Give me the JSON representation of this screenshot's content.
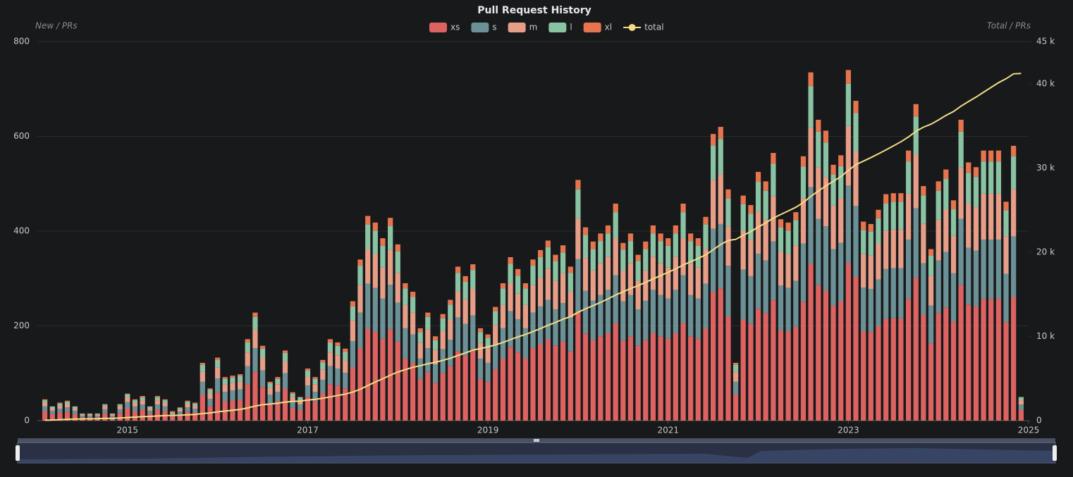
{
  "chart_data": {
    "type": "bar",
    "stacked": true,
    "title": "Pull Request History",
    "ylabel": "New / PRs",
    "y2label": "Total / PRs",
    "xlim": [
      2014.0,
      2025.0
    ],
    "xticks": [
      2015,
      2017,
      2019,
      2021,
      2023,
      2025
    ],
    "ylim": [
      0,
      800
    ],
    "yticks": [
      0,
      200,
      400,
      600,
      800
    ],
    "y2lim": [
      0,
      45000
    ],
    "y2ticks": [
      0,
      {
        "value": 10000,
        "label": "10 k"
      },
      {
        "value": 20000,
        "label": "20 k"
      },
      {
        "value": 30000,
        "label": "30 k"
      },
      {
        "value": 40000,
        "label": "40 k"
      },
      {
        "value": 45000,
        "label": "45 k"
      }
    ],
    "grid": true,
    "legend": "top",
    "x": [
      2014.083,
      2014.167,
      2014.25,
      2014.333,
      2014.417,
      2014.5,
      2014.583,
      2014.667,
      2014.75,
      2014.833,
      2014.917,
      2015.0,
      2015.083,
      2015.167,
      2015.25,
      2015.333,
      2015.417,
      2015.5,
      2015.583,
      2015.667,
      2015.75,
      2015.833,
      2015.917,
      2016.0,
      2016.083,
      2016.167,
      2016.25,
      2016.333,
      2016.417,
      2016.5,
      2016.583,
      2016.667,
      2016.75,
      2016.833,
      2016.917,
      2017.0,
      2017.083,
      2017.167,
      2017.25,
      2017.333,
      2017.417,
      2017.5,
      2017.583,
      2017.667,
      2017.75,
      2017.833,
      2017.917,
      2018.0,
      2018.083,
      2018.167,
      2018.25,
      2018.333,
      2018.417,
      2018.5,
      2018.583,
      2018.667,
      2018.75,
      2018.833,
      2018.917,
      2019.0,
      2019.083,
      2019.167,
      2019.25,
      2019.333,
      2019.417,
      2019.5,
      2019.583,
      2019.667,
      2019.75,
      2019.833,
      2019.917,
      2020.0,
      2020.083,
      2020.167,
      2020.25,
      2020.333,
      2020.417,
      2020.5,
      2020.583,
      2020.667,
      2020.75,
      2020.833,
      2020.917,
      2021.0,
      2021.083,
      2021.167,
      2021.25,
      2021.333,
      2021.417,
      2021.5,
      2021.583,
      2021.667,
      2021.75,
      2021.833,
      2021.917,
      2022.0,
      2022.083,
      2022.167,
      2022.25,
      2022.333,
      2022.417,
      2022.5,
      2022.583,
      2022.667,
      2022.75,
      2022.833,
      2022.917,
      2023.0,
      2023.083,
      2023.167,
      2023.25,
      2023.333,
      2023.417,
      2023.5,
      2023.583,
      2023.667,
      2023.75,
      2023.833,
      2023.917,
      2024.0,
      2024.083,
      2024.167,
      2024.25,
      2024.333,
      2024.417,
      2024.5,
      2024.583,
      2024.667,
      2024.75,
      2024.833,
      2024.917
    ],
    "series": [
      {
        "name": "xs",
        "color": "#dc6361",
        "values": [
          20,
          14,
          17,
          19,
          14,
          7,
          7,
          7,
          16,
          7,
          16,
          26,
          20,
          23,
          14,
          23,
          20,
          9,
          13,
          19,
          17,
          55,
          31,
          60,
          41,
          43,
          44,
          77,
          103,
          71,
          37,
          41,
          67,
          27,
          23,
          50,
          41,
          58,
          77,
          74,
          68,
          113,
          153,
          194,
          188,
          173,
          193,
          167,
          131,
          122,
          88,
          103,
          80,
          101,
          115,
          146,
          137,
          149,
          88,
          82,
          108,
          131,
          155,
          144,
          131,
          153,
          162,
          171,
          158,
          167,
          146,
          229,
          184,
          170,
          178,
          185,
          206,
          169,
          178,
          158,
          170,
          185,
          178,
          173,
          185,
          206,
          178,
          173,
          194,
          272,
          279,
          220,
          55,
          214,
          205,
          236,
          227,
          254,
          191,
          188,
          198,
          251,
          331,
          286,
          275,
          243,
          252,
          333,
          304,
          189,
          187,
          200,
          215,
          216,
          216,
          257,
          301,
          223,
          163,
          227,
          239,
          209,
          286,
          245,
          241,
          257,
          257,
          257,
          208,
          261,
          23
        ]
      },
      {
        "name": "s",
        "color": "#6b9197",
        "values": [
          10,
          7,
          8,
          9,
          7,
          3,
          3,
          3,
          8,
          3,
          8,
          13,
          10,
          11,
          7,
          11,
          10,
          4,
          6,
          9,
          8,
          27,
          15,
          29,
          20,
          21,
          22,
          38,
          50,
          35,
          18,
          20,
          33,
          13,
          11,
          24,
          20,
          28,
          38,
          36,
          33,
          55,
          75,
          95,
          92,
          85,
          94,
          82,
          64,
          60,
          43,
          50,
          39,
          50,
          56,
          72,
          67,
          73,
          43,
          40,
          53,
          64,
          76,
          70,
          64,
          75,
          79,
          84,
          77,
          81,
          72,
          112,
          90,
          83,
          87,
          91,
          101,
          83,
          87,
          77,
          83,
          91,
          87,
          85,
          91,
          101,
          87,
          85,
          95,
          133,
          136,
          107,
          27,
          105,
          100,
          116,
          111,
          124,
          94,
          92,
          97,
          123,
          162,
          140,
          135,
          119,
          123,
          163,
          149,
          92,
          91,
          98,
          105,
          106,
          106,
          125,
          147,
          109,
          80,
          111,
          117,
          102,
          140,
          120,
          118,
          125,
          125,
          125,
          102,
          128,
          11
        ]
      },
      {
        "name": "m",
        "color": "#e79e88",
        "values": [
          8,
          5,
          6,
          7,
          5,
          3,
          3,
          3,
          6,
          3,
          6,
          10,
          8,
          9,
          5,
          9,
          8,
          3,
          5,
          7,
          6,
          21,
          12,
          23,
          16,
          16,
          17,
          29,
          39,
          27,
          14,
          16,
          25,
          10,
          9,
          19,
          16,
          22,
          29,
          28,
          26,
          43,
          58,
          73,
          71,
          65,
          73,
          63,
          49,
          46,
          33,
          39,
          30,
          38,
          43,
          55,
          52,
          56,
          33,
          31,
          41,
          49,
          59,
          54,
          49,
          58,
          61,
          65,
          60,
          63,
          55,
          86,
          69,
          64,
          67,
          70,
          78,
          64,
          67,
          60,
          64,
          70,
          67,
          65,
          70,
          78,
          67,
          65,
          73,
          103,
          105,
          83,
          21,
          81,
          77,
          89,
          86,
          96,
          72,
          71,
          75,
          95,
          125,
          108,
          104,
          92,
          95,
          126,
          115,
          71,
          71,
          76,
          81,
          82,
          82,
          97,
          114,
          84,
          62,
          86,
          90,
          79,
          108,
          93,
          91,
          97,
          97,
          97,
          79,
          99,
          9
        ]
      },
      {
        "name": "l",
        "color": "#8ac3a3",
        "values": [
          5,
          4,
          5,
          5,
          4,
          2,
          2,
          2,
          4,
          2,
          4,
          7,
          5,
          6,
          4,
          6,
          5,
          2,
          3,
          5,
          5,
          15,
          8,
          16,
          11,
          11,
          12,
          21,
          27,
          19,
          10,
          11,
          18,
          7,
          6,
          13,
          11,
          15,
          21,
          20,
          18,
          30,
          41,
          52,
          50,
          46,
          51,
          45,
          35,
          33,
          23,
          27,
          21,
          27,
          31,
          39,
          37,
          40,
          23,
          22,
          29,
          35,
          41,
          38,
          35,
          41,
          43,
          46,
          42,
          44,
          39,
          61,
          49,
          45,
          47,
          49,
          55,
          45,
          47,
          42,
          45,
          49,
          47,
          46,
          49,
          55,
          47,
          46,
          52,
          73,
          74,
          59,
          15,
          57,
          55,
          63,
          61,
          68,
          51,
          50,
          53,
          67,
          88,
          76,
          73,
          65,
          67,
          89,
          81,
          50,
          50,
          53,
          57,
          58,
          58,
          68,
          80,
          59,
          43,
          61,
          64,
          56,
          76,
          65,
          64,
          68,
          68,
          68,
          55,
          70,
          6
        ]
      },
      {
        "name": "xl",
        "color": "#e6744f",
        "values": [
          2,
          0,
          2,
          2,
          0,
          0,
          0,
          0,
          1,
          0,
          1,
          1,
          2,
          3,
          0,
          3,
          2,
          2,
          1,
          2,
          2,
          4,
          2,
          5,
          4,
          4,
          3,
          7,
          9,
          6,
          3,
          4,
          5,
          3,
          1,
          4,
          4,
          5,
          7,
          7,
          7,
          11,
          13,
          18,
          17,
          16,
          17,
          15,
          11,
          11,
          8,
          9,
          8,
          9,
          10,
          13,
          12,
          12,
          8,
          7,
          9,
          11,
          14,
          14,
          11,
          13,
          15,
          14,
          13,
          15,
          13,
          20,
          16,
          16,
          16,
          17,
          18,
          14,
          16,
          13,
          16,
          17,
          16,
          16,
          17,
          18,
          16,
          16,
          16,
          24,
          26,
          19,
          4,
          18,
          18,
          21,
          20,
          23,
          17,
          17,
          17,
          22,
          29,
          25,
          25,
          21,
          23,
          29,
          26,
          18,
          16,
          18,
          20,
          18,
          18,
          23,
          26,
          20,
          14,
          20,
          20,
          19,
          25,
          22,
          21,
          23,
          23,
          23,
          18,
          22,
          1
        ]
      },
      {
        "name": "total",
        "color": "#f2dc84",
        "axis": "y2",
        "type": "line",
        "values": [
          45,
          75,
          113,
          155,
          185,
          200,
          215,
          230,
          265,
          280,
          315,
          372,
          417,
          469,
          499,
          551,
          596,
          616,
          644,
          686,
          724,
          846,
          914,
          1047,
          1139,
          1234,
          1332,
          1504,
          1732,
          1890,
          1972,
          2064,
          2212,
          2272,
          2322,
          2432,
          2524,
          2652,
          2824,
          2989,
          3141,
          3393,
          3733,
          4165,
          4583,
          4968,
          5396,
          5768,
          6058,
          6330,
          6525,
          6753,
          6931,
          7156,
          7411,
          7736,
          8041,
          8371,
          8566,
          8748,
          8988,
          9278,
          9623,
          9943,
          10233,
          10573,
          10933,
          11313,
          11663,
          12033,
          12358,
          12866,
          13274,
          13652,
          14047,
          14459,
          14917,
          15292,
          15687,
          16037,
          16415,
          16827,
          17222,
          17607,
          18019,
          18477,
          18872,
          19257,
          19687,
          20292,
          20912,
          21400,
          21522,
          21997,
          22452,
          22977,
          23482,
          24047,
          24472,
          24890,
          25330,
          25888,
          26623,
          27258,
          27870,
          28410,
          28970,
          29710,
          30385,
          30805,
          31220,
          31665,
          32143,
          32623,
          33103,
          33673,
          34341,
          34836,
          35198,
          35703,
          36233,
          36698,
          37333,
          37878,
          38413,
          38983,
          39553,
          40123,
          40585,
          41165,
          41215
        ]
      }
    ]
  }
}
